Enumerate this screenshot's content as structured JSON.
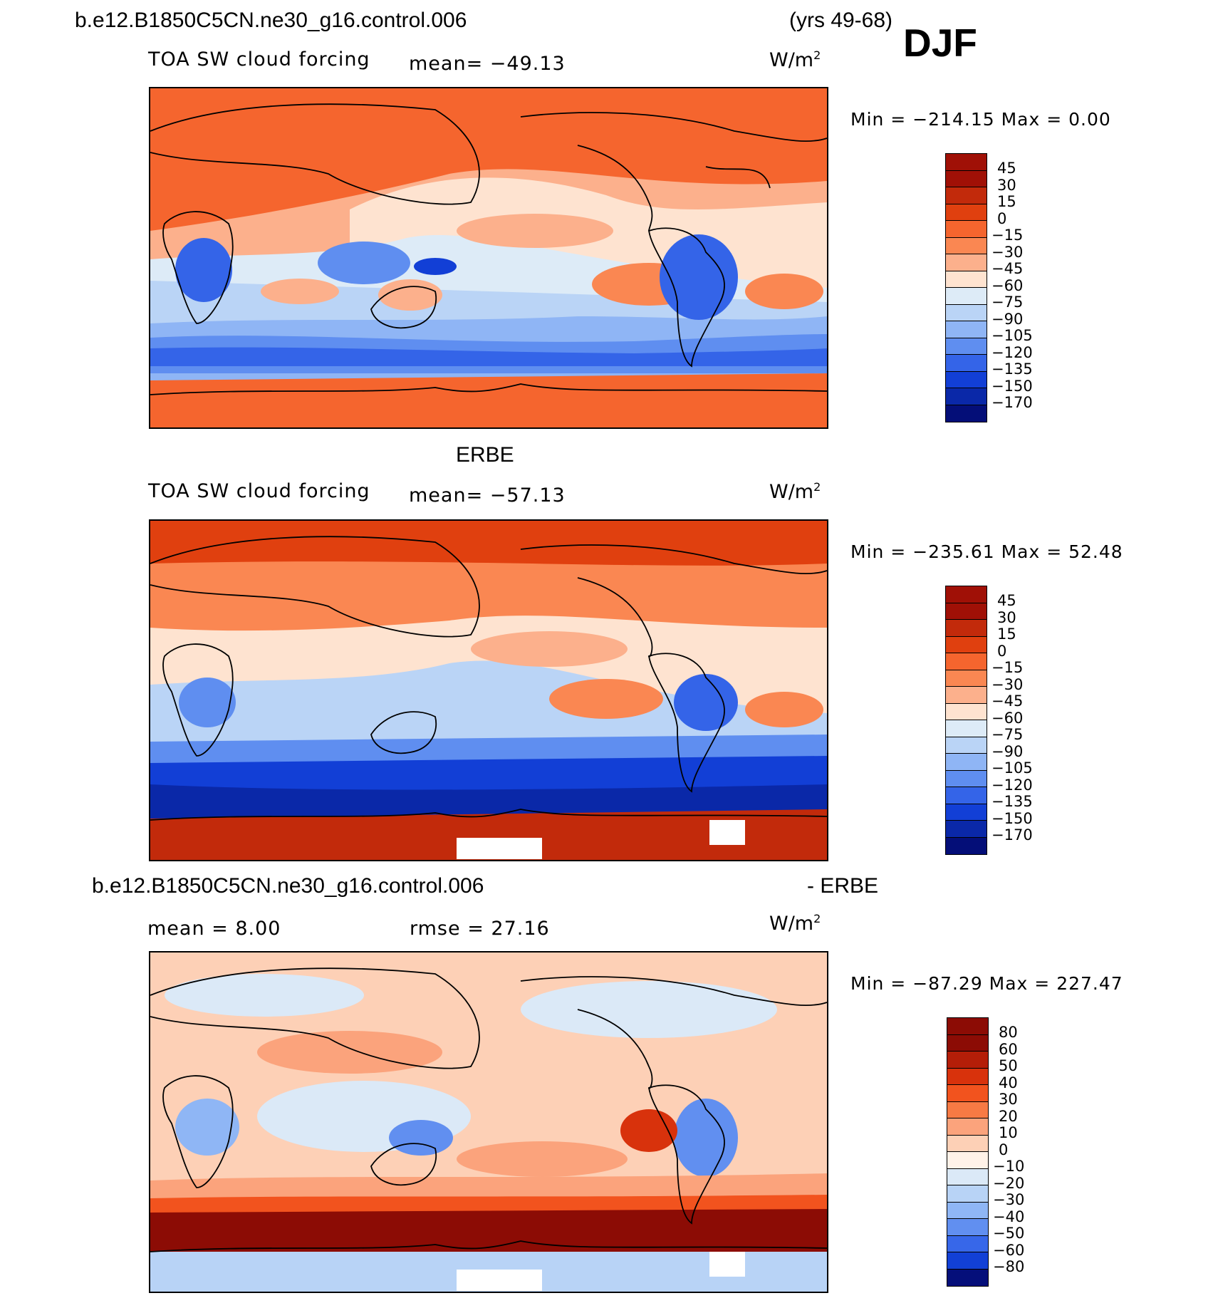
{
  "header": {
    "case_name": "b.e12.B1850C5CN.ne30_g16.control.006",
    "years": "(yrs 49-68)",
    "season": "DJF"
  },
  "panels": [
    {
      "id": "model",
      "title": "",
      "variable": "TOA SW cloud forcing",
      "stat_left": "mean= −49.13",
      "stat_right": "",
      "unit": "W/m",
      "unit_sup": "2",
      "minmax": "Min  =  −214.15  Max  =     0.00",
      "colorbar": {
        "labels": [
          "45",
          "30",
          "15",
          "0",
          "−15",
          "−30",
          "−45",
          "−60",
          "−75",
          "−90",
          "−105",
          "−120",
          "−135",
          "−150",
          "−170"
        ],
        "colors": [
          "#a01006",
          "#c22a0b",
          "#e0400f",
          "#f5652e",
          "#fa8752",
          "#fcb08c",
          "#fee3d0",
          "#ddebf7",
          "#bad4f6",
          "#8fb5f5",
          "#5f8ef0",
          "#3464e8",
          "#123fd6",
          "#0a28a8",
          "#040e78"
        ]
      }
    },
    {
      "id": "obs",
      "title": "ERBE",
      "variable": "TOA SW cloud forcing",
      "stat_left": "mean= −57.13",
      "stat_right": "",
      "unit": "W/m",
      "unit_sup": "2",
      "minmax": "Min  =  −235.61  Max  =   52.48",
      "colorbar": {
        "labels": [
          "45",
          "30",
          "15",
          "0",
          "−15",
          "−30",
          "−45",
          "−60",
          "−75",
          "−90",
          "−105",
          "−120",
          "−135",
          "−150",
          "−170"
        ],
        "colors": [
          "#a01006",
          "#c22a0b",
          "#e0400f",
          "#f5652e",
          "#fa8752",
          "#fcb08c",
          "#fee3d0",
          "#ddebf7",
          "#bad4f6",
          "#8fb5f5",
          "#5f8ef0",
          "#3464e8",
          "#123fd6",
          "#0a28a8",
          "#040e78"
        ]
      }
    },
    {
      "id": "diff",
      "title": "b.e12.B1850C5CN.ne30_g16.control.006",
      "title_right": "- ERBE",
      "variable": "",
      "stat_left": "mean  =    8.00",
      "stat_right": "rmse  =   27.16",
      "unit": "W/m",
      "unit_sup": "2",
      "minmax": "Min  =  −87.29  Max  =  227.47",
      "colorbar": {
        "labels": [
          "80",
          "60",
          "50",
          "40",
          "30",
          "20",
          "10",
          "0",
          "−10",
          "−20",
          "−30",
          "−40",
          "−50",
          "−60",
          "−80"
        ],
        "colors": [
          "#8c0c05",
          "#b41e08",
          "#d8320c",
          "#f2531e",
          "#f77a44",
          "#fba37c",
          "#fdd0b6",
          "#fff2e8",
          "#dbe9f7",
          "#b8d3f6",
          "#8fb6f5",
          "#618ff0",
          "#3767e9",
          "#1240d6",
          "#050f7a"
        ]
      }
    }
  ]
}
